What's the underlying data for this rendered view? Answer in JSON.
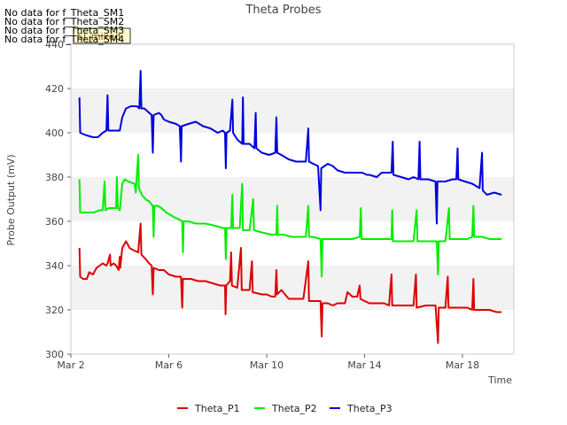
{
  "chart_data": {
    "type": "line",
    "title": "Theta Probes",
    "xlabel": "Time",
    "ylabel": "Probe Output (mV)",
    "ylim": [
      300,
      440
    ],
    "xlim_days": [
      0,
      18.1
    ],
    "x_ticks": [
      {
        "label": "Mar 2",
        "day": 0
      },
      {
        "label": "Mar 6",
        "day": 4
      },
      {
        "label": "Mar 10",
        "day": 8
      },
      {
        "label": "Mar 14",
        "day": 12
      },
      {
        "label": "Mar 18",
        "day": 16
      }
    ],
    "y_ticks": [
      300,
      320,
      340,
      360,
      380,
      400,
      420,
      440
    ],
    "grid": "horizontal bands",
    "legend_position": "bottom",
    "no_data_messages": [
      "No data for f_Theta_SM1",
      "No data for f_Theta_SM2",
      "No data for f_Theta_SM3",
      "No data for f_Theta_SM4"
    ],
    "annotation_box": "SI_mixed",
    "series": [
      {
        "name": "Theta_P1",
        "color": "#dd0000",
        "points": [
          [
            0.35,
            348
          ],
          [
            0.38,
            335
          ],
          [
            0.5,
            334
          ],
          [
            0.65,
            334
          ],
          [
            0.75,
            337
          ],
          [
            0.9,
            336
          ],
          [
            1.05,
            339
          ],
          [
            1.3,
            341
          ],
          [
            1.45,
            340
          ],
          [
            1.5,
            341
          ],
          [
            1.6,
            345
          ],
          [
            1.62,
            340
          ],
          [
            1.75,
            341
          ],
          [
            1.85,
            340
          ],
          [
            1.95,
            338
          ],
          [
            2.0,
            344
          ],
          [
            2.02,
            339
          ],
          [
            2.1,
            348
          ],
          [
            2.25,
            351
          ],
          [
            2.4,
            348
          ],
          [
            2.55,
            347
          ],
          [
            2.75,
            346
          ],
          [
            2.85,
            359
          ],
          [
            2.88,
            345
          ],
          [
            3.05,
            343
          ],
          [
            3.2,
            341
          ],
          [
            3.3,
            340
          ],
          [
            3.35,
            327
          ],
          [
            3.38,
            339
          ],
          [
            3.6,
            338
          ],
          [
            3.8,
            338
          ],
          [
            4.0,
            336
          ],
          [
            4.3,
            335
          ],
          [
            4.5,
            335
          ],
          [
            4.55,
            321
          ],
          [
            4.58,
            334
          ],
          [
            4.9,
            334
          ],
          [
            5.2,
            333
          ],
          [
            5.5,
            333
          ],
          [
            5.8,
            332
          ],
          [
            6.1,
            331
          ],
          [
            6.3,
            331
          ],
          [
            6.32,
            318
          ],
          [
            6.35,
            331
          ],
          [
            6.5,
            333
          ],
          [
            6.55,
            346
          ],
          [
            6.58,
            331
          ],
          [
            6.8,
            330
          ],
          [
            6.95,
            348
          ],
          [
            6.98,
            329
          ],
          [
            7.3,
            329
          ],
          [
            7.4,
            342
          ],
          [
            7.43,
            328
          ],
          [
            7.8,
            327
          ],
          [
            8.0,
            327
          ],
          [
            8.2,
            326
          ],
          [
            8.35,
            326
          ],
          [
            8.4,
            338
          ],
          [
            8.43,
            327
          ],
          [
            8.6,
            329
          ],
          [
            8.75,
            327
          ],
          [
            8.9,
            325
          ],
          [
            9.2,
            325
          ],
          [
            9.5,
            325
          ],
          [
            9.7,
            342
          ],
          [
            9.73,
            324
          ],
          [
            10.0,
            324
          ],
          [
            10.2,
            324
          ],
          [
            10.25,
            308
          ],
          [
            10.28,
            323
          ],
          [
            10.5,
            323
          ],
          [
            10.7,
            322
          ],
          [
            10.9,
            323
          ],
          [
            11.2,
            323
          ],
          [
            11.3,
            328
          ],
          [
            11.5,
            326
          ],
          [
            11.7,
            326
          ],
          [
            11.8,
            331
          ],
          [
            11.83,
            325
          ],
          [
            12.0,
            324
          ],
          [
            12.2,
            323
          ],
          [
            12.5,
            323
          ],
          [
            12.8,
            323
          ],
          [
            13.0,
            322
          ],
          [
            13.1,
            336
          ],
          [
            13.13,
            322
          ],
          [
            13.5,
            322
          ],
          [
            14.0,
            322
          ],
          [
            14.1,
            336
          ],
          [
            14.13,
            321
          ],
          [
            14.5,
            322
          ],
          [
            14.9,
            322
          ],
          [
            15.0,
            305
          ],
          [
            15.03,
            321
          ],
          [
            15.3,
            321
          ],
          [
            15.4,
            335
          ],
          [
            15.43,
            321
          ],
          [
            15.8,
            321
          ],
          [
            16.2,
            321
          ],
          [
            16.4,
            320
          ],
          [
            16.45,
            334
          ],
          [
            16.48,
            320
          ],
          [
            16.8,
            320
          ],
          [
            17.1,
            320
          ],
          [
            17.4,
            319
          ],
          [
            17.6,
            319
          ]
        ]
      },
      {
        "name": "Theta_P2",
        "color": "#00ee00",
        "points": [
          [
            0.35,
            379
          ],
          [
            0.38,
            364
          ],
          [
            0.6,
            364
          ],
          [
            0.8,
            364
          ],
          [
            0.95,
            364
          ],
          [
            1.15,
            365
          ],
          [
            1.3,
            365
          ],
          [
            1.38,
            378
          ],
          [
            1.41,
            365
          ],
          [
            1.55,
            366
          ],
          [
            1.7,
            366
          ],
          [
            1.85,
            366
          ],
          [
            1.88,
            380
          ],
          [
            1.92,
            366
          ],
          [
            2.0,
            365
          ],
          [
            2.1,
            377
          ],
          [
            2.2,
            379
          ],
          [
            2.35,
            378
          ],
          [
            2.6,
            377
          ],
          [
            2.65,
            373
          ],
          [
            2.75,
            390
          ],
          [
            2.78,
            375
          ],
          [
            2.9,
            372
          ],
          [
            3.05,
            370
          ],
          [
            3.2,
            369
          ],
          [
            3.35,
            367
          ],
          [
            3.38,
            353
          ],
          [
            3.41,
            367
          ],
          [
            3.55,
            367
          ],
          [
            3.7,
            366
          ],
          [
            3.8,
            365
          ],
          [
            3.9,
            364
          ],
          [
            4.05,
            363
          ],
          [
            4.2,
            362
          ],
          [
            4.4,
            361
          ],
          [
            4.55,
            360
          ],
          [
            4.58,
            346
          ],
          [
            4.61,
            360
          ],
          [
            4.8,
            360
          ],
          [
            5.1,
            359
          ],
          [
            5.5,
            359
          ],
          [
            5.9,
            358
          ],
          [
            6.2,
            357
          ],
          [
            6.3,
            357
          ],
          [
            6.33,
            343
          ],
          [
            6.36,
            357
          ],
          [
            6.55,
            357
          ],
          [
            6.6,
            372
          ],
          [
            6.63,
            357
          ],
          [
            6.9,
            357
          ],
          [
            7.0,
            377
          ],
          [
            7.03,
            356
          ],
          [
            7.3,
            356
          ],
          [
            7.45,
            370
          ],
          [
            7.48,
            356
          ],
          [
            7.8,
            355
          ],
          [
            8.2,
            354
          ],
          [
            8.4,
            354
          ],
          [
            8.43,
            367
          ],
          [
            8.46,
            354
          ],
          [
            8.7,
            354
          ],
          [
            9.0,
            353
          ],
          [
            9.4,
            353
          ],
          [
            9.6,
            353
          ],
          [
            9.7,
            367
          ],
          [
            9.73,
            353
          ],
          [
            9.9,
            353
          ],
          [
            10.2,
            352
          ],
          [
            10.25,
            335
          ],
          [
            10.28,
            352
          ],
          [
            10.6,
            352
          ],
          [
            10.9,
            352
          ],
          [
            11.2,
            352
          ],
          [
            11.5,
            352
          ],
          [
            11.8,
            353
          ],
          [
            11.85,
            366
          ],
          [
            11.88,
            352
          ],
          [
            12.2,
            352
          ],
          [
            12.6,
            352
          ],
          [
            13.1,
            352
          ],
          [
            13.13,
            365
          ],
          [
            13.16,
            351
          ],
          [
            13.6,
            351
          ],
          [
            14.0,
            351
          ],
          [
            14.13,
            365
          ],
          [
            14.16,
            351
          ],
          [
            14.6,
            351
          ],
          [
            14.95,
            351
          ],
          [
            15.0,
            336
          ],
          [
            15.03,
            351
          ],
          [
            15.3,
            351
          ],
          [
            15.45,
            366
          ],
          [
            15.48,
            352
          ],
          [
            15.9,
            352
          ],
          [
            16.2,
            352
          ],
          [
            16.4,
            353
          ],
          [
            16.45,
            367
          ],
          [
            16.48,
            353
          ],
          [
            16.8,
            353
          ],
          [
            17.1,
            352
          ],
          [
            17.4,
            352
          ],
          [
            17.6,
            352
          ]
        ]
      },
      {
        "name": "Theta_P3",
        "color": "#0000dd",
        "points": [
          [
            0.35,
            416
          ],
          [
            0.38,
            400
          ],
          [
            0.6,
            399
          ],
          [
            0.9,
            398
          ],
          [
            1.1,
            398
          ],
          [
            1.3,
            400
          ],
          [
            1.45,
            401
          ],
          [
            1.5,
            417
          ],
          [
            1.53,
            401
          ],
          [
            1.7,
            401
          ],
          [
            1.9,
            401
          ],
          [
            2.0,
            401
          ],
          [
            2.1,
            407
          ],
          [
            2.25,
            411
          ],
          [
            2.45,
            412
          ],
          [
            2.7,
            412
          ],
          [
            2.8,
            411
          ],
          [
            2.85,
            428
          ],
          [
            2.88,
            411
          ],
          [
            3.0,
            411
          ],
          [
            3.2,
            409
          ],
          [
            3.3,
            408
          ],
          [
            3.35,
            391
          ],
          [
            3.38,
            408
          ],
          [
            3.6,
            409
          ],
          [
            3.7,
            408
          ],
          [
            3.8,
            406
          ],
          [
            4.0,
            405
          ],
          [
            4.3,
            404
          ],
          [
            4.45,
            403
          ],
          [
            4.5,
            387
          ],
          [
            4.53,
            403
          ],
          [
            4.8,
            404
          ],
          [
            5.1,
            405
          ],
          [
            5.4,
            403
          ],
          [
            5.7,
            402
          ],
          [
            6.0,
            400
          ],
          [
            6.2,
            401
          ],
          [
            6.3,
            400
          ],
          [
            6.33,
            384
          ],
          [
            6.36,
            400
          ],
          [
            6.5,
            401
          ],
          [
            6.6,
            415
          ],
          [
            6.63,
            400
          ],
          [
            6.8,
            397
          ],
          [
            7.0,
            395
          ],
          [
            7.03,
            416
          ],
          [
            7.06,
            395
          ],
          [
            7.3,
            395
          ],
          [
            7.5,
            393
          ],
          [
            7.55,
            409
          ],
          [
            7.58,
            393
          ],
          [
            7.8,
            391
          ],
          [
            8.1,
            390
          ],
          [
            8.35,
            391
          ],
          [
            8.4,
            407
          ],
          [
            8.43,
            391
          ],
          [
            8.6,
            390
          ],
          [
            8.9,
            388
          ],
          [
            9.2,
            387
          ],
          [
            9.4,
            387
          ],
          [
            9.6,
            387
          ],
          [
            9.7,
            402
          ],
          [
            9.73,
            387
          ],
          [
            9.9,
            386
          ],
          [
            10.1,
            385
          ],
          [
            10.2,
            365
          ],
          [
            10.23,
            384
          ],
          [
            10.5,
            386
          ],
          [
            10.7,
            385
          ],
          [
            10.9,
            383
          ],
          [
            11.2,
            382
          ],
          [
            11.6,
            382
          ],
          [
            11.9,
            382
          ],
          [
            12.1,
            381
          ],
          [
            12.2,
            381
          ],
          [
            12.5,
            380
          ],
          [
            12.7,
            382
          ],
          [
            13.1,
            382
          ],
          [
            13.15,
            396
          ],
          [
            13.18,
            381
          ],
          [
            13.5,
            380
          ],
          [
            13.8,
            379
          ],
          [
            14.0,
            380
          ],
          [
            14.2,
            379
          ],
          [
            14.25,
            396
          ],
          [
            14.28,
            379
          ],
          [
            14.6,
            379
          ],
          [
            14.9,
            378
          ],
          [
            14.95,
            359
          ],
          [
            14.98,
            378
          ],
          [
            15.3,
            378
          ],
          [
            15.6,
            379
          ],
          [
            15.75,
            379
          ],
          [
            15.8,
            393
          ],
          [
            15.83,
            379
          ],
          [
            16.1,
            378
          ],
          [
            16.4,
            377
          ],
          [
            16.7,
            375
          ],
          [
            16.8,
            391
          ],
          [
            16.83,
            374
          ],
          [
            17.0,
            372
          ],
          [
            17.3,
            373
          ],
          [
            17.6,
            372
          ]
        ]
      }
    ]
  }
}
